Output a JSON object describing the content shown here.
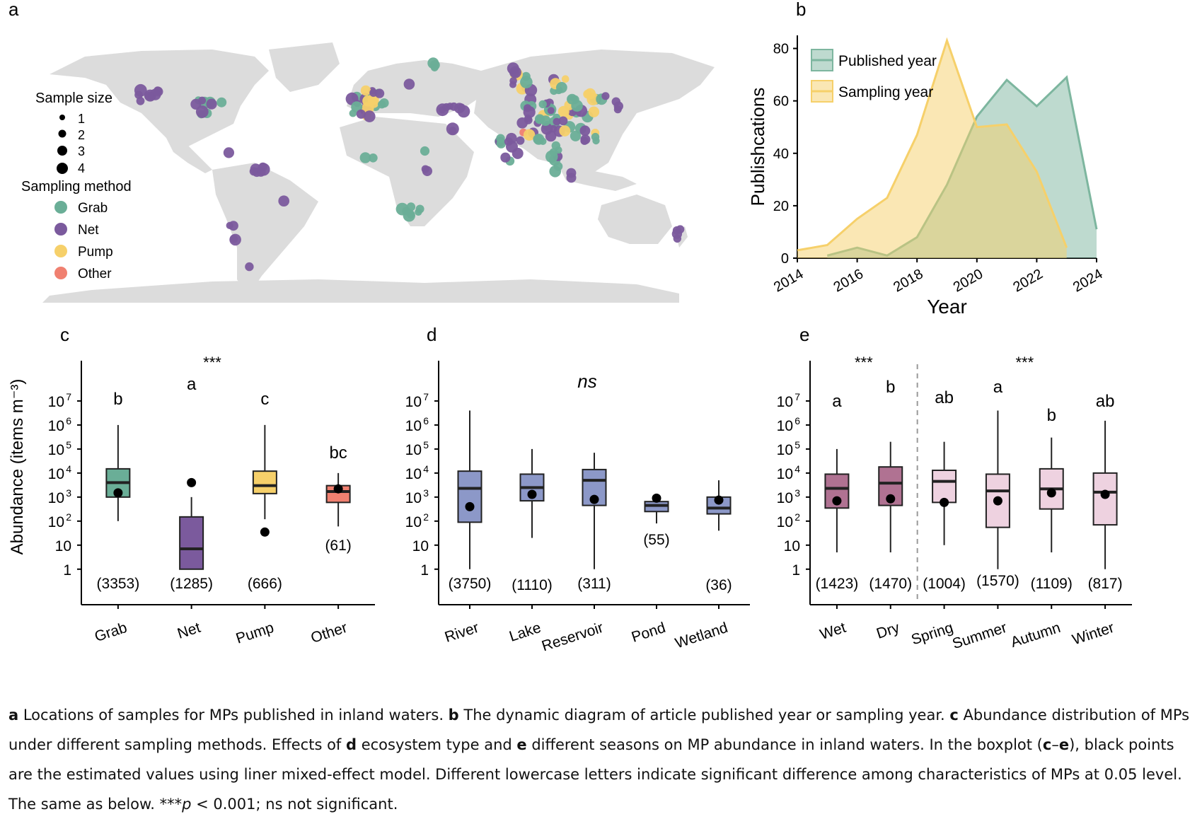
{
  "colors": {
    "grab": "#6aae97",
    "net": "#7b5a9d",
    "pump": "#f6d06a",
    "other": "#f08070",
    "published": "#7db69f",
    "sampling": "#f6d06a",
    "ecosystem": "#8c98c8",
    "wetdry": "#b07292",
    "season": "#eed2e0",
    "land": "#dcdcdc"
  },
  "panels": {
    "a": "a",
    "b": "b",
    "c": "c",
    "d": "d",
    "e": "e"
  },
  "map_legend": {
    "size_title": "Sample size",
    "sizes": [
      "1",
      "2",
      "3",
      "4"
    ],
    "method_title": "Sampling method",
    "methods": [
      "Grab",
      "Net",
      "Pump",
      "Other"
    ]
  },
  "chart_data": [
    {
      "id": "b",
      "type": "area",
      "xlabel": "Year",
      "ylabel": "Publishcations",
      "xlim": [
        2014,
        2024
      ],
      "ylim": [
        0,
        85
      ],
      "xticks": [
        "2014",
        "2016",
        "2018",
        "2020",
        "2022",
        "2024"
      ],
      "yticks": [
        "0",
        "20",
        "40",
        "60",
        "80"
      ],
      "legend_position": "top-left",
      "series": [
        {
          "name": "Published year",
          "x": [
            2015,
            2016,
            2017,
            2018,
            2019,
            2020,
            2021,
            2022,
            2023,
            2024
          ],
          "values": [
            1,
            4,
            1,
            8,
            28,
            54,
            68,
            58,
            69,
            11
          ]
        },
        {
          "name": "Sampling year",
          "x": [
            2014,
            2015,
            2016,
            2017,
            2018,
            2019,
            2020,
            2021,
            2022,
            2023
          ],
          "values": [
            3,
            5,
            15,
            23,
            47,
            83,
            50,
            51,
            33,
            4
          ]
        }
      ]
    },
    {
      "id": "c",
      "type": "box",
      "ylabel": "Abundance (items m⁻³)",
      "significance": "***",
      "categories": [
        "Grab",
        "Net",
        "Pump",
        "Other"
      ],
      "letters": [
        "b",
        "a",
        "c",
        "bc"
      ],
      "counts": [
        "(3353)",
        "(1285)",
        "(666)",
        "(61)"
      ],
      "boxes": [
        {
          "q1": 1000,
          "median": 4000,
          "q3": 15000,
          "wlo": 100,
          "whi": 1000000,
          "point": 1500
        },
        {
          "q1": 1,
          "median": 7,
          "q3": 150,
          "wlo": 1,
          "whi": 1000,
          "point": 4000
        },
        {
          "q1": 1400,
          "median": 3000,
          "q3": 12000,
          "wlo": 120,
          "whi": 1000000,
          "point": 35
        },
        {
          "q1": 600,
          "median": 1700,
          "q3": 3000,
          "wlo": 60,
          "whi": 10000,
          "point": 2200
        }
      ]
    },
    {
      "id": "d",
      "type": "box",
      "significance": "ns",
      "categories": [
        "River",
        "Lake",
        "Reservoir",
        "Pond",
        "Wetland"
      ],
      "counts": [
        "(3750)",
        "(1110)",
        "(311)",
        "(55)",
        "(36)"
      ],
      "boxes": [
        {
          "q1": 90,
          "median": 2300,
          "q3": 12000,
          "wlo": 1,
          "whi": 4000000,
          "point": 400
        },
        {
          "q1": 700,
          "median": 2500,
          "q3": 9000,
          "wlo": 20,
          "whi": 100000,
          "point": 1300
        },
        {
          "q1": 450,
          "median": 5000,
          "q3": 14000,
          "wlo": 1,
          "whi": 70000,
          "point": 800
        },
        {
          "q1": 250,
          "median": 450,
          "q3": 650,
          "wlo": 80,
          "whi": 1000,
          "point": 900
        },
        {
          "q1": 200,
          "median": 350,
          "q3": 1000,
          "wlo": 40,
          "whi": 5000,
          "point": 750
        }
      ]
    },
    {
      "id": "e",
      "type": "box",
      "significance_left": "***",
      "significance_right": "***",
      "categories": [
        "Wet",
        "Dry",
        "Spring",
        "Summer",
        "Autumn",
        "Winter"
      ],
      "letters": [
        "a",
        "b",
        "ab",
        "a",
        "b",
        "ab"
      ],
      "counts": [
        "(1423)",
        "(1470)",
        "(1004)",
        "(1570)",
        "(1109)",
        "(817)"
      ],
      "boxes": [
        {
          "q1": 350,
          "median": 2300,
          "q3": 9000,
          "wlo": 5,
          "whi": 100000,
          "point": 700
        },
        {
          "q1": 450,
          "median": 3800,
          "q3": 18000,
          "wlo": 5,
          "whi": 200000,
          "point": 850
        },
        {
          "q1": 600,
          "median": 4500,
          "q3": 13000,
          "wlo": 10,
          "whi": 200000,
          "point": 600
        },
        {
          "q1": 55,
          "median": 1800,
          "q3": 9000,
          "wlo": 1,
          "whi": 4000000,
          "point": 700
        },
        {
          "q1": 320,
          "median": 2200,
          "q3": 15000,
          "wlo": 5,
          "whi": 300000,
          "point": 1500
        },
        {
          "q1": 70,
          "median": 1600,
          "q3": 10000,
          "wlo": 1,
          "whi": 1500000,
          "point": 1300
        }
      ]
    }
  ],
  "caption": {
    "a_label": "a",
    "a_text": " Locations of samples for MPs published in inland waters. ",
    "b_label": "b",
    "b_text": " The dynamic diagram of article published year or sampling year. ",
    "c_label": "c",
    "c_text": " Abundance distribution of MPs under different sampling methods. Effects of ",
    "d_label": "d",
    "d_text": " ecosystem type and ",
    "e_label": "e",
    "e_text": " different seasons on MP abundance in inland waters. In the boxplot (",
    "ce_label": "c",
    "dash": "–",
    "ce2_label": "e",
    "rest": "), black points are the estimated values using liner mixed-effect model. Different lowercase letters indicate significant difference among characteristics of MPs at 0.05 level. The same as below. ***",
    "p": "p",
    "tail": " < 0.001; ns not significant."
  }
}
